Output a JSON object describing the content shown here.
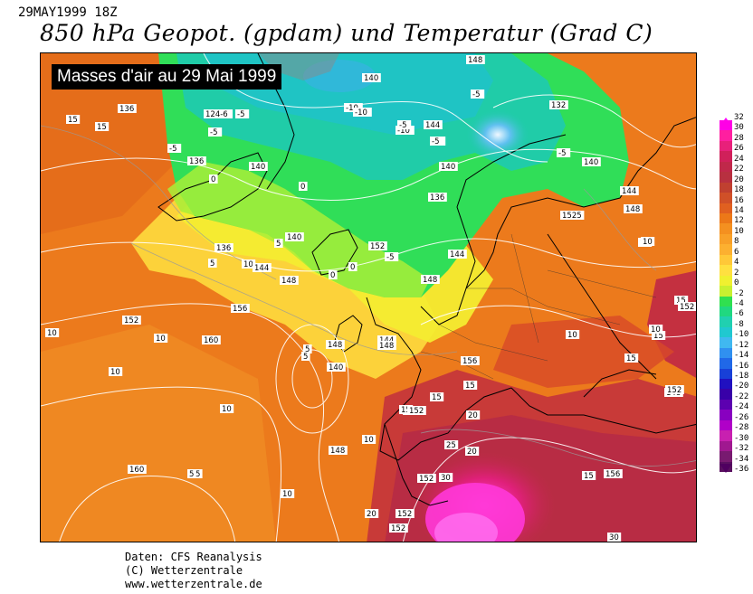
{
  "header": {
    "date_label": "29MAY1999 18Z",
    "title": "850 hPa Geopot. (gpdam) und  Temperatur (Grad C)"
  },
  "overlay": {
    "caption": "Masses d'air au 29 Mai 1999"
  },
  "credits": {
    "line1": "Daten: CFS Reanalysis",
    "line2": "(C) Wetterzentrale",
    "line3": "www.wetterzentrale.de"
  },
  "colorbar": {
    "units": "Grad C",
    "levels": [
      "32",
      "30",
      "28",
      "26",
      "24",
      "22",
      "20",
      "18",
      "16",
      "14",
      "12",
      "10",
      "8",
      "6",
      "4",
      "2",
      "0",
      "-2",
      "-4",
      "-6",
      "-8",
      "-10",
      "-12",
      "-14",
      "-16",
      "-18",
      "-20",
      "-22",
      "-24",
      "-26",
      "-28",
      "-30",
      "-32",
      "-34",
      "-36"
    ],
    "colors": [
      "#ff00e6",
      "#ff1fa0",
      "#e8207a",
      "#d0205a",
      "#c0284a",
      "#b83040",
      "#c04030",
      "#d05028",
      "#e06020",
      "#ec7818",
      "#f49020",
      "#f8a028",
      "#fcb030",
      "#ffc838",
      "#ffe040",
      "#f0f030",
      "#c8f030",
      "#30e050",
      "#20d880",
      "#20d0b0",
      "#20c8d0",
      "#40b8f0",
      "#3090f0",
      "#2068e8",
      "#1840d8",
      "#2010c0",
      "#3800a8",
      "#5c00b0",
      "#8800c0",
      "#b000c8",
      "#c820b0",
      "#a01890",
      "#781a70",
      "#5a1060"
    ]
  },
  "map": {
    "region": "Europe and North Atlantic",
    "labels": [
      {
        "text": "15"
      },
      {
        "text": "15"
      },
      {
        "text": "136"
      },
      {
        "text": "124-6"
      },
      {
        "text": "-5"
      },
      {
        "text": "-5"
      },
      {
        "text": "-5"
      },
      {
        "text": "-10"
      },
      {
        "text": "-10"
      },
      {
        "text": "140"
      },
      {
        "text": "148"
      },
      {
        "text": "-5"
      },
      {
        "text": "0"
      },
      {
        "text": "-10"
      },
      {
        "text": "-5"
      },
      {
        "text": "132"
      },
      {
        "text": "144"
      },
      {
        "text": "-5"
      },
      {
        "text": "136"
      },
      {
        "text": "140"
      },
      {
        "text": "0"
      },
      {
        "text": "5"
      },
      {
        "text": "136"
      },
      {
        "text": "-5"
      },
      {
        "text": "140"
      },
      {
        "text": "-5"
      },
      {
        "text": "140"
      },
      {
        "text": "144"
      },
      {
        "text": "148"
      },
      {
        "text": "1525"
      },
      {
        "text": "5"
      },
      {
        "text": "136"
      },
      {
        "text": "140"
      },
      {
        "text": "152"
      },
      {
        "text": "0"
      },
      {
        "text": "-5"
      },
      {
        "text": "10"
      },
      {
        "text": "144"
      },
      {
        "text": "148"
      },
      {
        "text": "0"
      },
      {
        "text": "144"
      },
      {
        "text": "148"
      },
      {
        "text": "10"
      },
      {
        "text": "152"
      },
      {
        "text": "156"
      },
      {
        "text": "10"
      },
      {
        "text": "10"
      },
      {
        "text": "160"
      },
      {
        "text": "148"
      },
      {
        "text": "140"
      },
      {
        "text": "5"
      },
      {
        "text": "144"
      },
      {
        "text": "148"
      },
      {
        "text": "5"
      },
      {
        "text": "10"
      },
      {
        "text": "10"
      },
      {
        "text": "5"
      },
      {
        "text": "10"
      },
      {
        "text": "148"
      },
      {
        "text": "160"
      },
      {
        "text": "5"
      },
      {
        "text": "10"
      },
      {
        "text": "152"
      },
      {
        "text": "15"
      },
      {
        "text": "152"
      },
      {
        "text": "15"
      },
      {
        "text": "156"
      },
      {
        "text": "15"
      },
      {
        "text": "20"
      },
      {
        "text": "25"
      },
      {
        "text": "20"
      },
      {
        "text": "30"
      },
      {
        "text": "152"
      },
      {
        "text": "15"
      },
      {
        "text": "156"
      },
      {
        "text": "152"
      },
      {
        "text": "152"
      },
      {
        "text": "20"
      },
      {
        "text": "30"
      },
      {
        "text": "10"
      },
      {
        "text": "10"
      },
      {
        "text": "15"
      },
      {
        "text": "15"
      },
      {
        "text": "152"
      },
      {
        "text": "10"
      },
      {
        "text": "15"
      },
      {
        "text": "148"
      },
      {
        "text": "152"
      }
    ]
  }
}
